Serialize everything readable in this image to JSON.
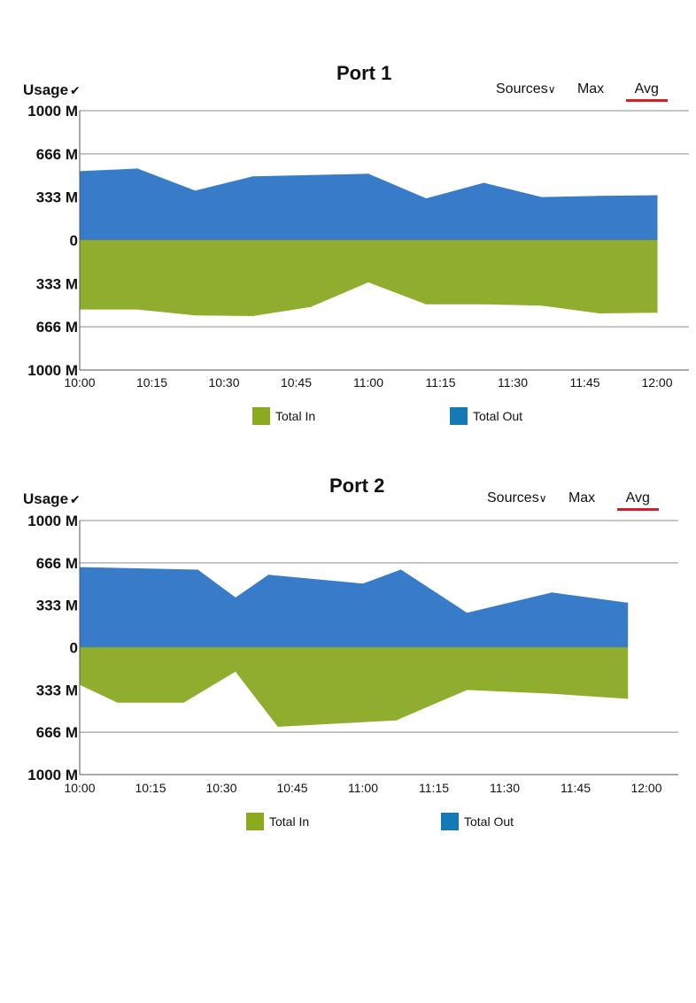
{
  "chart_data": [
    {
      "type": "area",
      "title": "Port 1",
      "ylabel": "Usage",
      "ytick_labels": [
        "1000 M",
        "666 M",
        "333 M",
        "0",
        "333 M",
        "666 M",
        "1000 M"
      ],
      "ytick_values": [
        1000,
        666,
        333,
        0,
        -333,
        -666,
        -1000
      ],
      "ylim": [
        -1000,
        1000
      ],
      "xtick_labels": [
        "10:00",
        "10:15",
        "10:30",
        "10:45",
        "11:00",
        "11:15",
        "11:30",
        "11:45",
        "12:00"
      ],
      "xtick_minutes": [
        0,
        15,
        30,
        45,
        60,
        75,
        90,
        105,
        120
      ],
      "controls": {
        "sources": "Sources",
        "max": "Max",
        "avg": "Avg"
      },
      "series": [
        {
          "name": "Total Out",
          "color": "#2e75c7",
          "x": [
            0,
            12,
            24,
            36,
            48,
            60,
            72,
            84,
            96,
            108,
            120
          ],
          "values": [
            530,
            550,
            380,
            490,
            500,
            510,
            320,
            440,
            330,
            340,
            345
          ]
        },
        {
          "name": "Total In",
          "color": "#8aaa22",
          "x": [
            0,
            12,
            24,
            36,
            48,
            60,
            72,
            84,
            96,
            108,
            120
          ],
          "values": [
            -530,
            -530,
            -575,
            -580,
            -510,
            -320,
            -490,
            -490,
            -500,
            -560,
            -555
          ]
        }
      ],
      "legend": [
        "Total In",
        "Total Out"
      ],
      "grid": "major y-lines"
    },
    {
      "type": "area",
      "title": "Port 2",
      "ylabel": "Usage",
      "ytick_labels": [
        "1000 M",
        "666 M",
        "333 M",
        "0",
        "333 M",
        "666 M",
        "1000 M"
      ],
      "ytick_values": [
        1000,
        666,
        333,
        0,
        -333,
        -666,
        -1000
      ],
      "ylim": [
        -1000,
        1000
      ],
      "xtick_labels": [
        "10:00",
        "10:15",
        "10:30",
        "10:45",
        "11:00",
        "11:15",
        "11:30",
        "11:45",
        "12:00"
      ],
      "xtick_minutes": [
        0,
        15,
        30,
        45,
        60,
        75,
        90,
        105,
        120
      ],
      "controls": {
        "sources": "Sources",
        "max": "Max",
        "avg": "Avg"
      },
      "series": [
        {
          "name": "Total Out",
          "color": "#2e75c7",
          "x": [
            0,
            25,
            33,
            40,
            60,
            68,
            82,
            100,
            116
          ],
          "values": [
            630,
            610,
            390,
            570,
            500,
            610,
            270,
            430,
            350
          ]
        },
        {
          "name": "Total In",
          "color": "#8aaa22",
          "x": [
            0,
            8,
            22,
            33,
            42,
            67,
            82,
            100,
            116
          ],
          "values": [
            -290,
            -430,
            -430,
            -185,
            -620,
            -570,
            -330,
            -360,
            -400
          ]
        }
      ],
      "legend": [
        "Total In",
        "Total Out"
      ],
      "grid": "major y-lines"
    }
  ]
}
